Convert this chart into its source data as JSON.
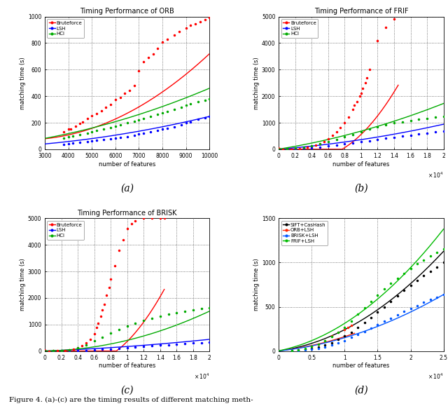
{
  "fig_width": 6.4,
  "fig_height": 5.89,
  "subplots": [
    {
      "title": "Timing Performance of ORB",
      "xlabel": "number of features",
      "ylabel": "matching time (s)",
      "xlim": [
        3000,
        10000
      ],
      "ylim": [
        0,
        1000
      ],
      "yticks": [
        0,
        200,
        400,
        600,
        800,
        1000
      ],
      "xticks": [
        3000,
        4000,
        5000,
        6000,
        7000,
        8000,
        9000,
        10000
      ],
      "xticklabels": [
        "3000",
        "4000",
        "5000",
        "6000",
        "7000",
        "8000",
        "9000",
        "10000"
      ],
      "use_sci_x": false,
      "label": "(a)",
      "legend_loc": "upper left",
      "series": [
        {
          "name": "Bruteforce",
          "color": "#ff0000",
          "scatter_x": [
            3800,
            4000,
            4100,
            4300,
            4500,
            4600,
            4800,
            5000,
            5200,
            5400,
            5600,
            5800,
            6000,
            6200,
            6400,
            6600,
            6800,
            7000,
            7200,
            7400,
            7600,
            7800,
            8000,
            8200,
            8500,
            8700,
            9000,
            9200,
            9400,
            9600,
            9800,
            10000
          ],
          "scatter_y": [
            130,
            150,
            155,
            175,
            195,
            205,
            230,
            255,
            270,
            290,
            315,
            340,
            375,
            390,
            420,
            445,
            480,
            590,
            660,
            690,
            720,
            760,
            810,
            830,
            860,
            885,
            915,
            935,
            945,
            960,
            975,
            990
          ],
          "fit_a": 1.05e-05,
          "fit_b": -0.045,
          "fit_c": 120,
          "fit_xmin": 3000,
          "fit_xmax": 10000
        },
        {
          "name": "LSH",
          "color": "#0000ff",
          "scatter_x": [
            3800,
            4000,
            4200,
            4500,
            4800,
            5000,
            5200,
            5500,
            5800,
            6000,
            6200,
            6500,
            6800,
            7000,
            7200,
            7500,
            7800,
            8000,
            8200,
            8500,
            8800,
            9000,
            9200,
            9500,
            9800,
            10000
          ],
          "scatter_y": [
            35,
            40,
            45,
            52,
            57,
            62,
            67,
            73,
            79,
            83,
            88,
            96,
            105,
            113,
            120,
            133,
            143,
            150,
            158,
            170,
            185,
            200,
            208,
            225,
            235,
            248
          ],
          "fit_a": 1.9e-06,
          "fit_b": 0.005,
          "fit_c": 8,
          "fit_xmin": 3000,
          "fit_xmax": 10000
        },
        {
          "name": "HCI",
          "color": "#00aa00",
          "scatter_x": [
            3800,
            4000,
            4200,
            4500,
            4800,
            5000,
            5200,
            5500,
            5800,
            6000,
            6200,
            6500,
            6800,
            7000,
            7200,
            7500,
            7800,
            8000,
            8200,
            8500,
            8800,
            9000,
            9200,
            9500,
            9800,
            10000
          ],
          "scatter_y": [
            85,
            92,
            100,
            112,
            122,
            132,
            142,
            155,
            165,
            173,
            183,
            198,
            212,
            222,
            232,
            248,
            263,
            272,
            282,
            298,
            318,
            330,
            342,
            360,
            368,
            378
          ],
          "fit_a": 3e-06,
          "fit_b": 0.015,
          "fit_c": 10,
          "fit_xmin": 3000,
          "fit_xmax": 10000
        }
      ]
    },
    {
      "title": "Timing Performance of FRIF",
      "xlabel": "number of features",
      "ylabel": "matching time (s)",
      "xlim": [
        0,
        20000
      ],
      "ylim": [
        0,
        5000
      ],
      "yticks": [
        0,
        1000,
        2000,
        3000,
        4000,
        5000
      ],
      "xticks": [
        0,
        2000,
        4000,
        6000,
        8000,
        10000,
        12000,
        14000,
        16000,
        18000,
        20000
      ],
      "xticklabels": [
        "0",
        "0.2",
        "0.4",
        "0.6",
        "0.8",
        "1",
        "1.2",
        "1.4",
        "1.6",
        "1.8",
        "2"
      ],
      "use_sci_x": true,
      "label": "(b)",
      "legend_loc": "upper left",
      "series": [
        {
          "name": "Bruteforce",
          "color": "#ff0000",
          "scatter_x": [
            500,
            1000,
            1500,
            2000,
            2500,
            3000,
            3500,
            4000,
            4500,
            5000,
            5500,
            6000,
            6500,
            7000,
            7500,
            8000,
            8500,
            9000,
            9200,
            9500,
            9800,
            10000,
            10200,
            10500,
            10700,
            11000,
            12000,
            13000,
            14000
          ],
          "scatter_y": [
            2,
            5,
            10,
            18,
            30,
            50,
            75,
            100,
            150,
            210,
            290,
            390,
            520,
            650,
            820,
            1000,
            1200,
            1500,
            1650,
            1800,
            2000,
            2100,
            2300,
            2500,
            2700,
            3000,
            4100,
            4600,
            4900
          ],
          "fit_a": 2.5e-05,
          "fit_b": -0.2,
          "fit_c": 60,
          "fit_xmin": 0,
          "fit_xmax": 14500
        },
        {
          "name": "LSH",
          "color": "#0000ff",
          "scatter_x": [
            1000,
            2000,
            3000,
            4000,
            5000,
            6000,
            7000,
            8000,
            9000,
            10000,
            11000,
            12000,
            13000,
            14000,
            15000,
            16000,
            17000,
            18000,
            19000,
            20000
          ],
          "scatter_y": [
            8,
            20,
            38,
            60,
            88,
            120,
            158,
            195,
            238,
            280,
            320,
            370,
            415,
            455,
            490,
            530,
            570,
            610,
            645,
            680
          ],
          "fit_a": 1.1e-06,
          "fit_b": 0.025,
          "fit_c": 3,
          "fit_xmin": 0,
          "fit_xmax": 20000
        },
        {
          "name": "HCI",
          "color": "#00aa00",
          "scatter_x": [
            1000,
            2000,
            3000,
            4000,
            5000,
            6000,
            7000,
            8000,
            9000,
            10000,
            11000,
            12000,
            13000,
            14000,
            15000,
            16000,
            17000,
            18000,
            19000,
            20000
          ],
          "scatter_y": [
            15,
            40,
            80,
            130,
            200,
            280,
            370,
            460,
            560,
            660,
            760,
            840,
            920,
            990,
            1040,
            1090,
            1130,
            1170,
            1200,
            1230
          ],
          "fit_a": 1.8e-06,
          "fit_b": 0.05,
          "fit_c": 5,
          "fit_xmin": 0,
          "fit_xmax": 20000
        }
      ]
    },
    {
      "title": "Timing Performance of BRISK",
      "xlabel": "number of features",
      "ylabel": "matching time (s)",
      "xlim": [
        0,
        20000
      ],
      "ylim": [
        0,
        5000
      ],
      "yticks": [
        0,
        1000,
        2000,
        3000,
        4000,
        5000
      ],
      "xticks": [
        0,
        2000,
        4000,
        6000,
        8000,
        10000,
        12000,
        14000,
        16000,
        18000,
        20000
      ],
      "xticklabels": [
        "0",
        "0.2",
        "0.4",
        "0.6",
        "0.8",
        "1",
        "1.2",
        "1.4",
        "1.6",
        "1.8",
        "2"
      ],
      "use_sci_x": true,
      "label": "(c)",
      "legend_loc": "upper left",
      "series": [
        {
          "name": "Bruteforce",
          "color": "#ff0000",
          "scatter_x": [
            500,
            1000,
            1500,
            2000,
            2500,
            3000,
            3500,
            4000,
            4500,
            5000,
            5500,
            6000,
            6300,
            6500,
            6800,
            7000,
            7200,
            7500,
            7800,
            8000,
            8500,
            9000,
            9500,
            10000,
            10500,
            11000,
            12000,
            13000,
            14000,
            14500
          ],
          "scatter_y": [
            2,
            5,
            10,
            18,
            30,
            50,
            80,
            130,
            200,
            310,
            450,
            660,
            900,
            1050,
            1300,
            1550,
            1750,
            2100,
            2400,
            2700,
            3200,
            3800,
            4200,
            4600,
            4800,
            4900,
            5000,
            5000,
            5000,
            5000
          ],
          "fit_a": 2.8e-05,
          "fit_b": -0.25,
          "fit_c": 60,
          "fit_xmin": 0,
          "fit_xmax": 14500
        },
        {
          "name": "LSH",
          "color": "#0000ff",
          "scatter_x": [
            1000,
            2000,
            3000,
            4000,
            5000,
            6000,
            7000,
            8000,
            9000,
            10000,
            11000,
            12000,
            13000,
            14000,
            15000,
            16000,
            17000,
            18000,
            19000,
            20000
          ],
          "scatter_y": [
            2,
            5,
            10,
            18,
            28,
            42,
            58,
            78,
            100,
            122,
            148,
            170,
            195,
            218,
            240,
            262,
            280,
            300,
            318,
            340
          ],
          "fit_a": 5e-07,
          "fit_b": 0.012,
          "fit_c": 1,
          "fit_xmin": 0,
          "fit_xmax": 20000
        },
        {
          "name": "HCI",
          "color": "#00aa00",
          "scatter_x": [
            1000,
            2000,
            3000,
            4000,
            5000,
            6000,
            7000,
            8000,
            9000,
            10000,
            11000,
            12000,
            13000,
            14000,
            15000,
            16000,
            17000,
            18000,
            19000,
            20000
          ],
          "scatter_y": [
            5,
            20,
            55,
            120,
            230,
            380,
            530,
            670,
            810,
            940,
            1050,
            1150,
            1240,
            1320,
            1390,
            1450,
            1500,
            1550,
            1590,
            1630
          ],
          "fit_a": 3.5e-06,
          "fit_b": 0.005,
          "fit_c": 3,
          "fit_xmin": 0,
          "fit_xmax": 20000
        }
      ]
    },
    {
      "title": "",
      "xlabel": "number of features",
      "ylabel": "matching time (s)",
      "xlim": [
        0,
        25000
      ],
      "ylim": [
        0,
        1500
      ],
      "yticks": [
        0,
        500,
        1000,
        1500
      ],
      "xticks": [
        0,
        5000,
        10000,
        15000,
        20000,
        25000
      ],
      "xticklabels": [
        "0",
        "0.5",
        "1",
        "1.5",
        "2",
        "2.5"
      ],
      "use_sci_x": true,
      "label": "(d)",
      "legend_loc": "upper left",
      "series": [
        {
          "name": "SIFT+CasHash",
          "color": "#000000",
          "scatter_x": [
            2000,
            3000,
            4000,
            5000,
            6000,
            7000,
            8000,
            9000,
            10000,
            11000,
            12000,
            13000,
            14000,
            15000,
            16000,
            17000,
            18000,
            19000,
            20000,
            21000,
            22000,
            23000,
            24000,
            25000
          ],
          "scatter_y": [
            5,
            10,
            18,
            28,
            45,
            65,
            92,
            128,
            168,
            215,
            265,
            320,
            380,
            440,
            500,
            560,
            625,
            685,
            745,
            800,
            850,
            900,
            950,
            1000
          ],
          "fit_a": 1.4e-06,
          "fit_b": 0.01,
          "fit_c": 2,
          "fit_xmin": 0,
          "fit_xmax": 25000
        },
        {
          "name": "ORB+LSH",
          "color": "#ff2200",
          "scatter_x": [
            5000,
            6000,
            7000,
            8000,
            9000,
            10000,
            10500,
            11000
          ],
          "scatter_y": [
            50,
            80,
            120,
            170,
            210,
            240,
            265,
            290
          ],
          "fit_a": 8e-07,
          "fit_b": 0.008,
          "fit_c": 3,
          "fit_xmin": 0,
          "fit_xmax": 11500
        },
        {
          "name": "BRISK+LSH",
          "color": "#0055ff",
          "scatter_x": [
            2000,
            3000,
            4000,
            5000,
            6000,
            7000,
            8000,
            9000,
            10000,
            11000,
            12000,
            13000,
            14000,
            15000,
            16000,
            17000,
            18000,
            19000,
            20000,
            21000,
            22000,
            23000,
            24000,
            25000
          ],
          "scatter_y": [
            3,
            6,
            12,
            20,
            32,
            48,
            68,
            92,
            120,
            152,
            185,
            220,
            258,
            295,
            335,
            370,
            408,
            445,
            480,
            515,
            548,
            580,
            610,
            640
          ],
          "fit_a": 7e-07,
          "fit_b": 0.008,
          "fit_c": 1,
          "fit_xmin": 0,
          "fit_xmax": 25000
        },
        {
          "name": "FRIF+LSH",
          "color": "#00bb00",
          "scatter_x": [
            2000,
            3000,
            4000,
            5000,
            6000,
            7000,
            8000,
            9000,
            10000,
            11000,
            12000,
            13000,
            14000,
            15000,
            16000,
            17000,
            18000,
            19000,
            20000,
            21000,
            22000,
            23000,
            24000,
            25000
          ],
          "scatter_y": [
            8,
            15,
            28,
            50,
            80,
            115,
            160,
            210,
            270,
            340,
            415,
            490,
            560,
            630,
            700,
            765,
            825,
            880,
            935,
            985,
            1030,
            1075,
            1115,
            1155
          ],
          "fit_a": 1.6e-06,
          "fit_b": 0.015,
          "fit_c": 3,
          "fit_xmin": 0,
          "fit_xmax": 25000
        }
      ]
    }
  ],
  "caption": "Figure 4. (a)-(c) are the timing results of different matching meth-"
}
